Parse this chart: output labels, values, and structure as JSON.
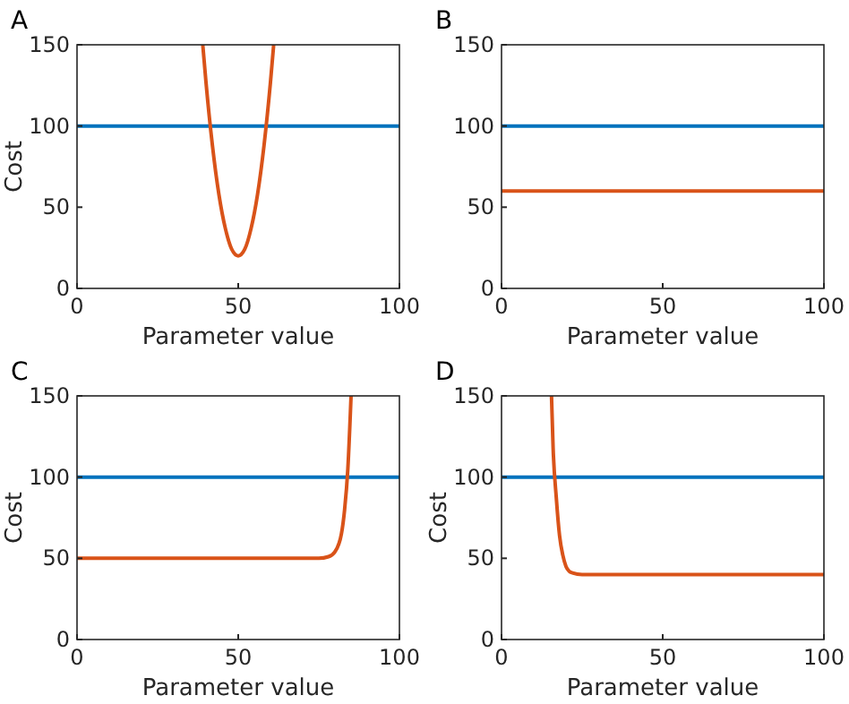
{
  "chart_data": [
    {
      "type": "line",
      "title": "A",
      "xlabel": "Parameter value",
      "ylabel": "Cost",
      "xlim": [
        0,
        100
      ],
      "ylim": [
        0,
        150
      ],
      "xticks": [
        0,
        50,
        100
      ],
      "yticks": [
        0,
        50,
        100,
        150
      ],
      "series": [
        {
          "color": "#0072bd",
          "x": [
            0,
            100
          ],
          "values": [
            100,
            100
          ]
        },
        {
          "color": "#d95319",
          "x": [
            39,
            40,
            42,
            44,
            46,
            48,
            50,
            52,
            54,
            56,
            58,
            60,
            61
          ],
          "values": [
            150,
            127,
            88,
            58,
            37,
            24,
            20,
            24,
            37,
            58,
            88,
            127,
            150
          ]
        }
      ]
    },
    {
      "type": "line",
      "title": "B",
      "xlabel": "Parameter value",
      "xlim": [
        0,
        100
      ],
      "ylim": [
        0,
        150
      ],
      "xticks": [
        0,
        50,
        100
      ],
      "yticks": [
        0,
        50,
        100,
        150
      ],
      "series": [
        {
          "color": "#0072bd",
          "x": [
            0,
            100
          ],
          "values": [
            100,
            100
          ]
        },
        {
          "color": "#d95319",
          "x": [
            0,
            100
          ],
          "values": [
            60,
            60
          ]
        }
      ]
    },
    {
      "type": "line",
      "title": "C",
      "xlabel": "Parameter value",
      "ylabel": "Cost",
      "xlim": [
        0,
        100
      ],
      "ylim": [
        0,
        150
      ],
      "xticks": [
        0,
        50,
        100
      ],
      "yticks": [
        0,
        50,
        100,
        150
      ],
      "series": [
        {
          "color": "#0072bd",
          "x": [
            0,
            100
          ],
          "values": [
            100,
            100
          ]
        },
        {
          "color": "#d95319",
          "x": [
            0,
            75,
            78,
            80,
            82,
            83,
            84,
            85
          ],
          "values": [
            50,
            50,
            51,
            54,
            65,
            80,
            105,
            150
          ]
        }
      ]
    },
    {
      "type": "line",
      "title": "D",
      "xlabel": "Parameter value",
      "ylabel": "Cost",
      "xlim": [
        0,
        100
      ],
      "ylim": [
        0,
        150
      ],
      "xticks": [
        0,
        50,
        100
      ],
      "yticks": [
        0,
        50,
        100,
        150
      ],
      "series": [
        {
          "color": "#0072bd",
          "x": [
            0,
            100
          ],
          "values": [
            100,
            100
          ]
        },
        {
          "color": "#d95319",
          "x": [
            15.5,
            16,
            17,
            18,
            19,
            20,
            21,
            22,
            25,
            100
          ],
          "values": [
            150,
            118,
            87,
            64,
            52,
            45,
            42,
            41,
            40,
            40
          ]
        }
      ]
    }
  ]
}
